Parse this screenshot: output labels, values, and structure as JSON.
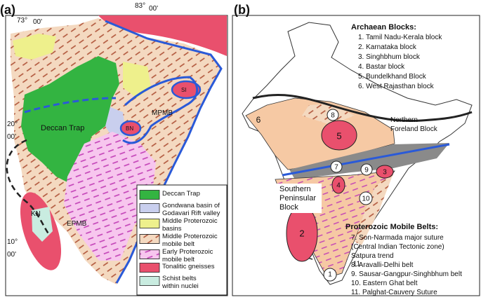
{
  "panel_a": {
    "label": "(a)",
    "coords": [
      {
        "deg": "73°",
        "min": "00'"
      },
      {
        "deg": "83°",
        "min": "00'"
      },
      {
        "deg": "20°",
        "min": "00'"
      },
      {
        "deg": "10°",
        "min": "00'"
      }
    ],
    "map_labels": [
      "Deccan Trap",
      "MPMB",
      "SI",
      "BN",
      "KN",
      "EPMB"
    ],
    "legend": [
      {
        "lines": [
          "Deccan Trap"
        ],
        "color": "#33b441"
      },
      {
        "lines": [
          "Gondwana basin of",
          "Godavari Rift valley"
        ],
        "color": "#c9cfee"
      },
      {
        "lines": [
          "Middle Proterozoic",
          "basins"
        ],
        "color": "#eef08c"
      },
      {
        "lines": [
          "Middle Proterozoic",
          "mobile belt"
        ],
        "color": "#f4d9c0"
      },
      {
        "lines": [
          "Early Proterozoic",
          "mobile belt"
        ],
        "color": "#f7c6ee"
      },
      {
        "lines": [
          "Tonalitic gneisses"
        ],
        "color": "#e9506d"
      },
      {
        "lines": [
          "Schist belts",
          "within nuclei"
        ],
        "color": "#c9ece0"
      }
    ]
  },
  "panel_b": {
    "label": "(b)",
    "archaean_title": "Archaean Blocks:",
    "archaean_blocks": [
      "1. Tamil Nadu-Kerala block",
      "2. Karnataka block",
      "3. Singhbhum block",
      "4. Bastar block",
      "5. Bundelkhand Block",
      "6. West Rajasthan block"
    ],
    "northern_block": [
      "Northern",
      "Foreland Block"
    ],
    "southern_block": [
      "Southern",
      "Peninsular",
      "Block"
    ],
    "map_numbers": [
      "1",
      "2",
      "3",
      "4",
      "5",
      "6",
      "7",
      "8",
      "9",
      "10",
      "11"
    ],
    "proterozoic_title": "Proterozoic Mobile Belts:",
    "proterozoic_belts": [
      "7. Son-Narmada major suture",
      "(Central Indian Tectonic zone)",
      "Satpura trend",
      "8. Aravalli-Delhi belt",
      "9. Sausar-Gangpur-Singhbhum belt",
      "10. Eastern Ghat belt",
      "11. Palghat-Cauvery Suture"
    ]
  }
}
